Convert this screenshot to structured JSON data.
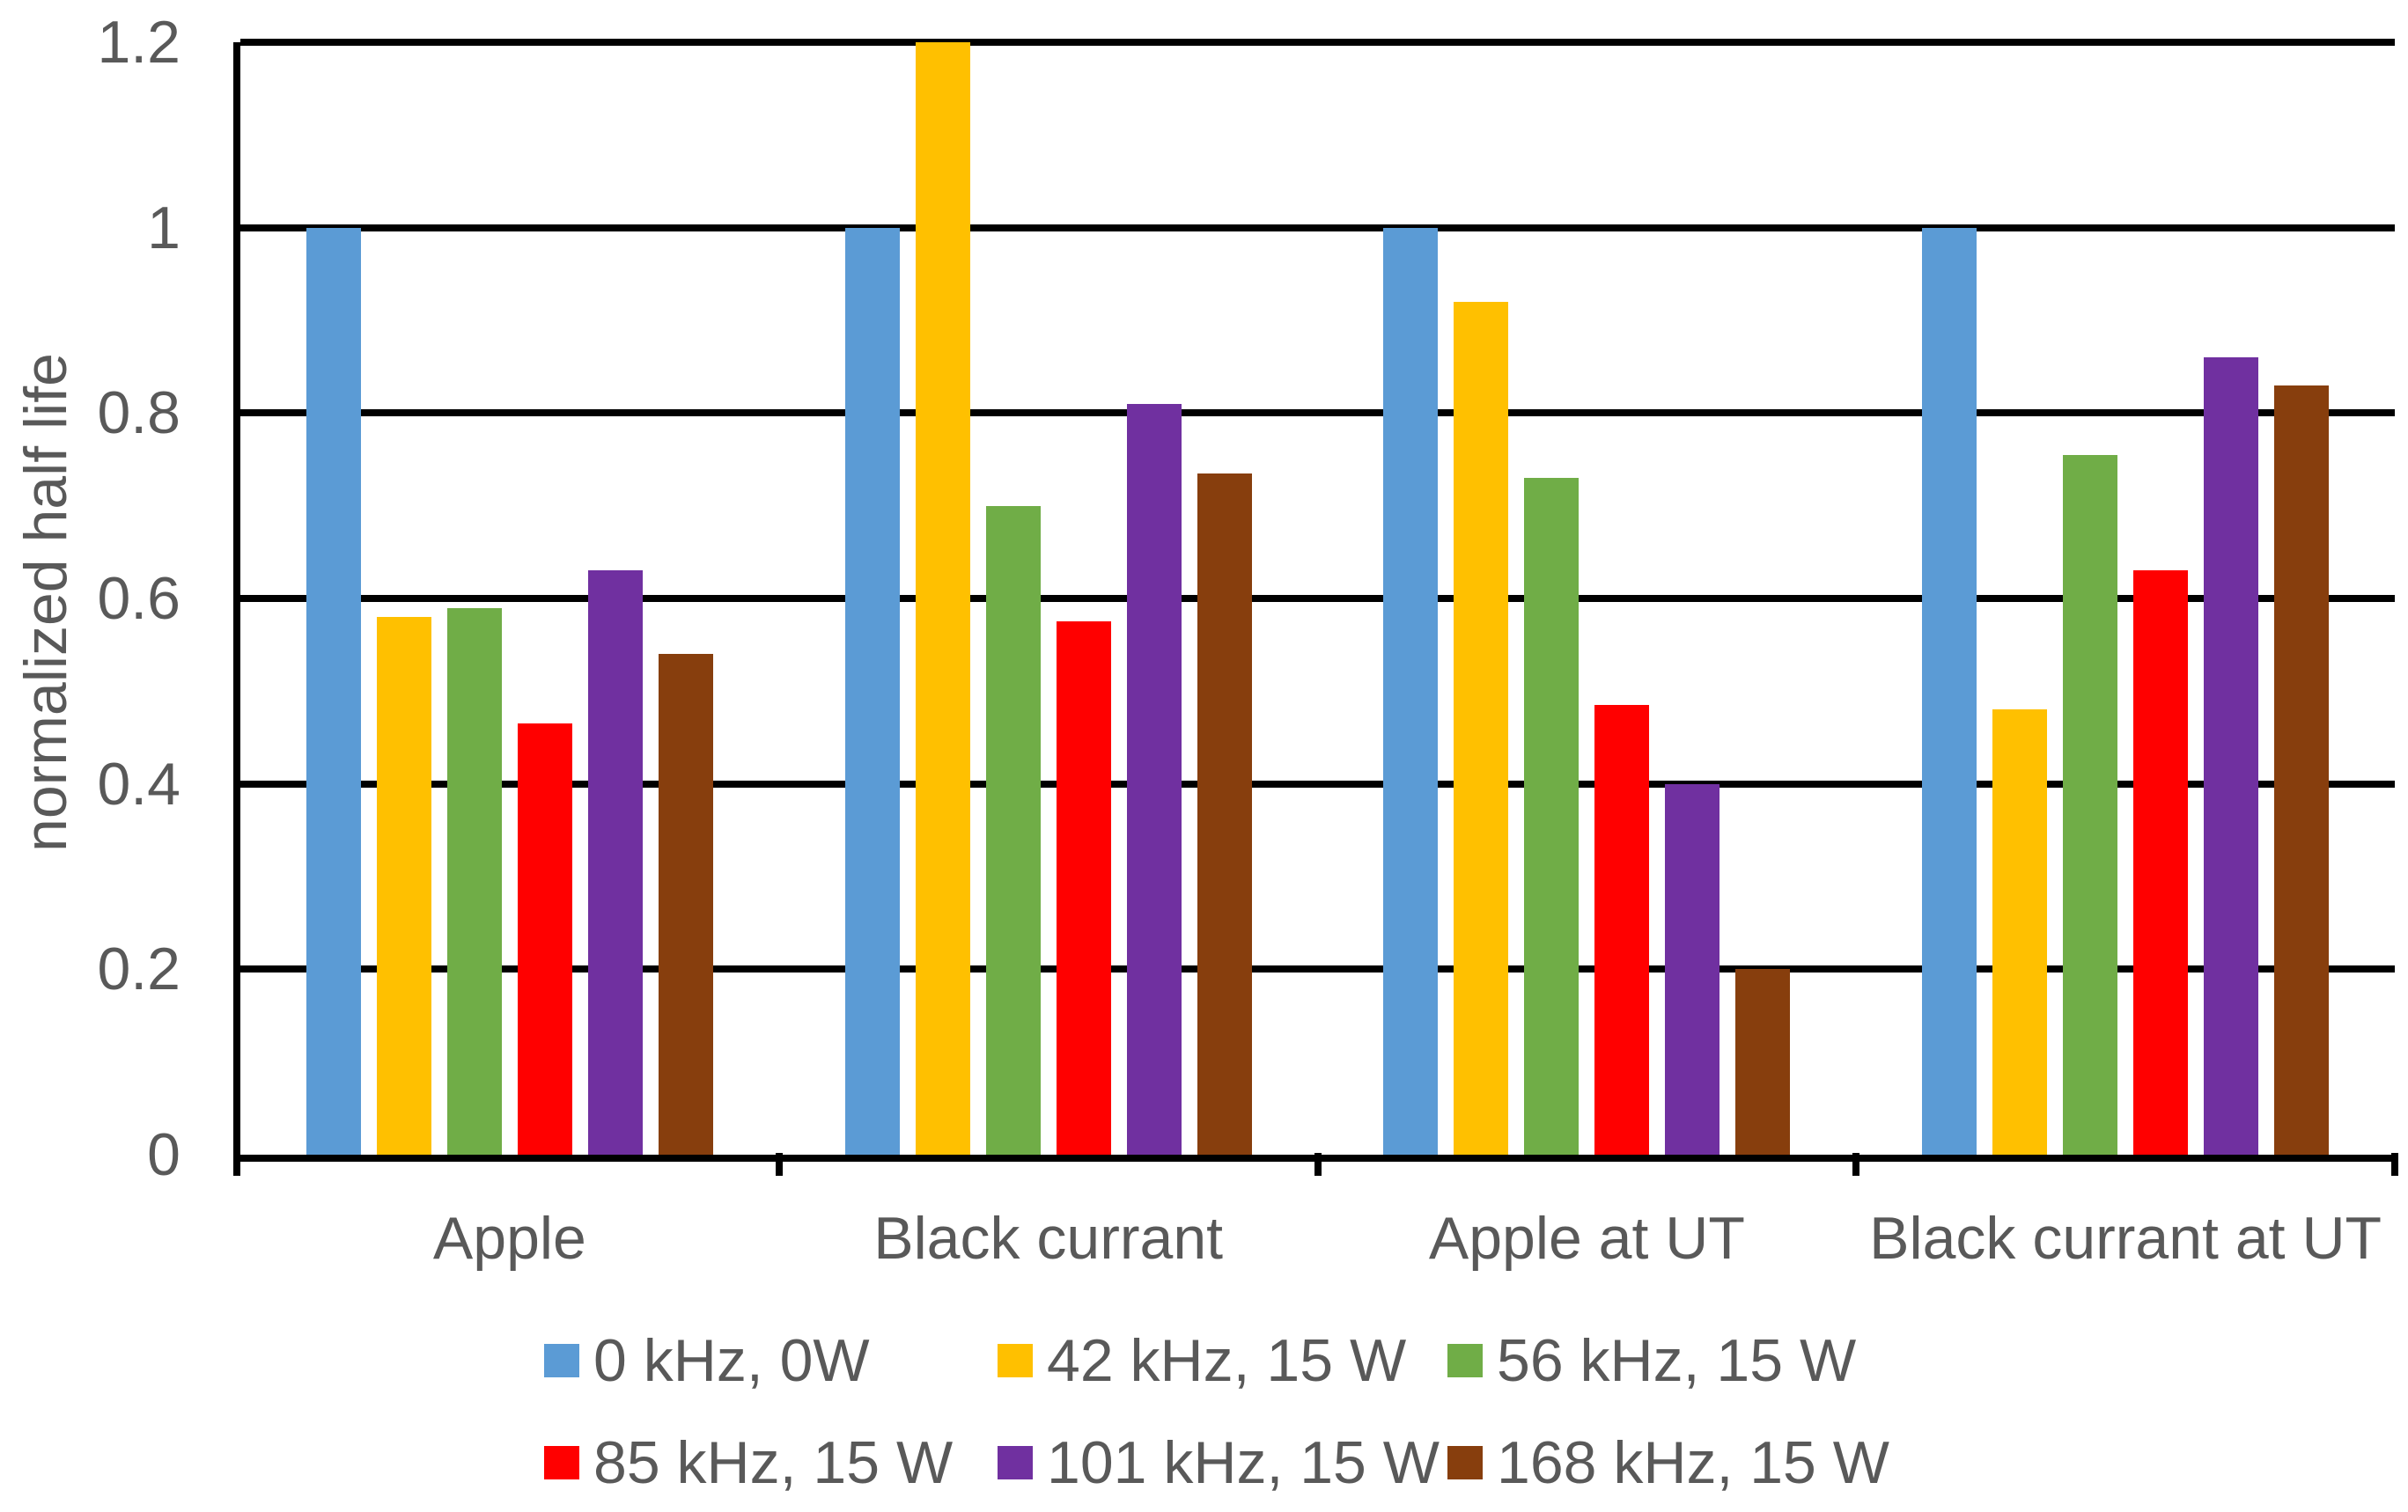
{
  "chart_data": {
    "type": "bar",
    "title": "",
    "xlabel": "",
    "ylabel": "normalized half life",
    "ylim": [
      0,
      1.2
    ],
    "ytick_labels": [
      "0",
      "0.2",
      "0.4",
      "0.6",
      "0.8",
      "1",
      "1.2"
    ],
    "ytick_values": [
      0,
      0.2,
      0.4,
      0.6,
      0.8,
      1,
      1.2
    ],
    "grid": true,
    "legend_position": "bottom",
    "categories": [
      "Apple",
      "Black currant",
      "Apple at UT",
      "Black currant at UT"
    ],
    "series": [
      {
        "name": "0 kHz, 0W",
        "color": "#5B9BD5",
        "values": [
          1.0,
          1.0,
          1.0,
          1.0
        ]
      },
      {
        "name": "42 kHz, 15 W",
        "color": "#FFC000",
        "values": [
          0.58,
          1.2,
          0.92,
          0.48
        ]
      },
      {
        "name": "56 kHz, 15 W",
        "color": "#70AD47",
        "values": [
          0.59,
          0.7,
          0.73,
          0.755
        ]
      },
      {
        "name": "85 kHz, 15 W",
        "color": "#FF0000",
        "values": [
          0.465,
          0.575,
          0.485,
          0.63
        ]
      },
      {
        "name": "101 kHz, 15 W",
        "color": "#7030A0",
        "values": [
          0.63,
          0.81,
          0.4,
          0.86
        ]
      },
      {
        "name": "168 kHz, 15 W",
        "color": "#873E0D",
        "values": [
          0.54,
          0.735,
          0.2,
          0.83
        ]
      }
    ],
    "legend_rows": [
      [
        0,
        1,
        2
      ],
      [
        3,
        4,
        5
      ]
    ],
    "colors": {
      "text": "#595959",
      "grid": "#000000",
      "axis": "#000000",
      "background": "#FFFFFF"
    }
  }
}
